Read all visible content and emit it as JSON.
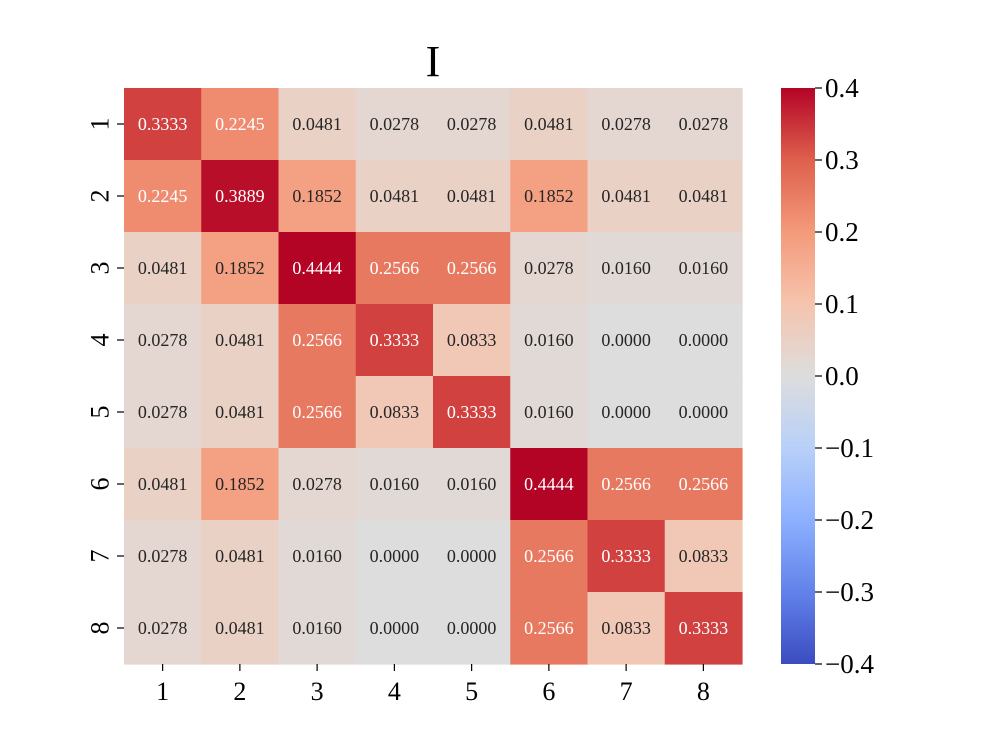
{
  "chart_data": {
    "type": "heatmap",
    "title": "I",
    "xlabel": "",
    "ylabel": "",
    "x_categories": [
      "1",
      "2",
      "3",
      "4",
      "5",
      "6",
      "7",
      "8"
    ],
    "y_categories": [
      "1",
      "2",
      "3",
      "4",
      "5",
      "6",
      "7",
      "8"
    ],
    "values": [
      [
        0.3333,
        0.2245,
        0.0481,
        0.0278,
        0.0278,
        0.0481,
        0.0278,
        0.0278
      ],
      [
        0.2245,
        0.3889,
        0.1852,
        0.0481,
        0.0481,
        0.1852,
        0.0481,
        0.0481
      ],
      [
        0.0481,
        0.1852,
        0.4444,
        0.2566,
        0.2566,
        0.0278,
        0.016,
        0.016
      ],
      [
        0.0278,
        0.0481,
        0.2566,
        0.3333,
        0.0833,
        0.016,
        0.0,
        0.0
      ],
      [
        0.0278,
        0.0481,
        0.2566,
        0.0833,
        0.3333,
        0.016,
        0.0,
        0.0
      ],
      [
        0.0481,
        0.1852,
        0.0278,
        0.016,
        0.016,
        0.4444,
        0.2566,
        0.2566
      ],
      [
        0.0278,
        0.0481,
        0.016,
        0.0,
        0.0,
        0.2566,
        0.3333,
        0.0833
      ],
      [
        0.0278,
        0.0481,
        0.016,
        0.0,
        0.0,
        0.2566,
        0.0833,
        0.3333
      ]
    ],
    "annotation_format": "4 decimals",
    "colormap": "coolwarm",
    "vmin": -0.4,
    "vmax": 0.4,
    "colorbar": {
      "position": "right",
      "ticks": [
        0.4,
        0.3,
        0.2,
        0.1,
        0.0,
        -0.1,
        -0.2,
        -0.3,
        -0.4
      ],
      "tick_labels": [
        "0.4",
        "0.3",
        "0.2",
        "0.1",
        "0.0",
        "−0.1",
        "−0.2",
        "−0.3",
        "−0.4"
      ]
    },
    "grid": false
  }
}
